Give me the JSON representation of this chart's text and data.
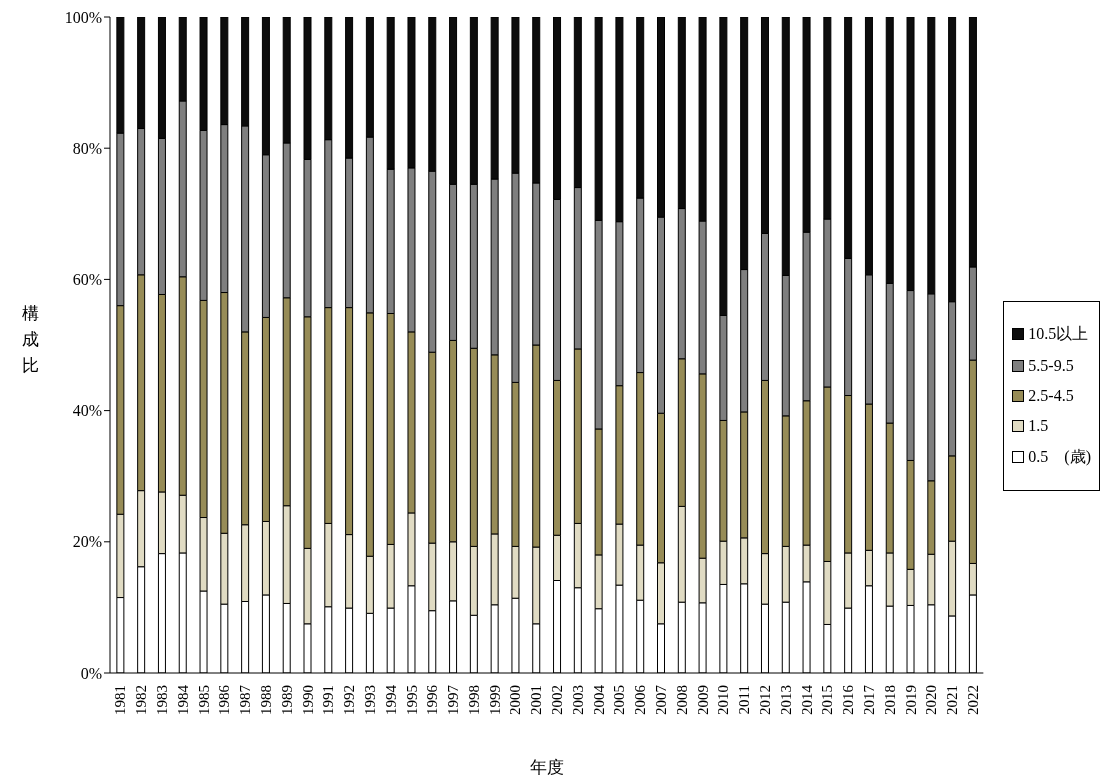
{
  "chart_data": {
    "type": "bar",
    "stacked": true,
    "xlabel": "年度",
    "ylabel": "構成比",
    "legend": "right",
    "categories": [
      "1981",
      "1982",
      "1983",
      "1984",
      "1985",
      "1986",
      "1987",
      "1988",
      "1989",
      "1990",
      "1991",
      "1992",
      "1993",
      "1994",
      "1995",
      "1996",
      "1997",
      "1998",
      "1999",
      "2000",
      "2001",
      "2002",
      "2003",
      "2004",
      "2005",
      "2006",
      "2007",
      "2008",
      "2009",
      "2010",
      "2011",
      "2012",
      "2013",
      "2014",
      "2015",
      "2016",
      "2017",
      "2018",
      "2019",
      "2020",
      "2021",
      "2022"
    ],
    "ylim": [
      0,
      100
    ],
    "yticks": [
      {
        "value": 0,
        "label": "0%"
      },
      {
        "value": 20,
        "label": "20%"
      },
      {
        "value": 40,
        "label": "40%"
      },
      {
        "value": 60,
        "label": "60%"
      },
      {
        "value": 80,
        "label": "80%"
      },
      {
        "value": 100,
        "label": "100%"
      }
    ],
    "series": [
      {
        "name": "0.5　(歳)",
        "color": "#ffffff",
        "values": [
          11.5,
          16.2,
          18.2,
          18.3,
          12.5,
          10.5,
          10.9,
          11.9,
          10.6,
          7.5,
          10.1,
          9.9,
          9.1,
          9.9,
          13.3,
          9.5,
          11.0,
          8.8,
          10.4,
          11.4,
          7.5,
          14.1,
          13.0,
          9.8,
          13.4,
          11.1,
          7.5,
          10.8,
          10.7,
          13.5,
          13.6,
          10.5,
          10.8,
          13.9,
          7.4,
          9.9,
          13.3,
          10.2,
          10.3,
          10.4,
          8.7,
          11.9
        ]
      },
      {
        "name": "1.5",
        "color": "#e0dbc3",
        "values": [
          12.7,
          11.6,
          9.4,
          8.8,
          11.2,
          10.8,
          11.7,
          11.2,
          14.9,
          11.5,
          12.7,
          11.2,
          8.7,
          9.7,
          11.1,
          10.3,
          9.0,
          10.5,
          10.8,
          7.9,
          11.7,
          6.9,
          9.8,
          8.2,
          9.3,
          8.4,
          9.3,
          14.6,
          6.8,
          6.6,
          7.0,
          7.7,
          8.5,
          5.6,
          9.6,
          8.4,
          5.4,
          8.1,
          5.5,
          7.7,
          11.4,
          4.8
        ]
      },
      {
        "name": "2.5-4.5",
        "color": "#978c57",
        "values": [
          31.8,
          32.9,
          30.1,
          33.3,
          33.1,
          36.7,
          29.4,
          31.1,
          31.7,
          35.3,
          32.9,
          34.6,
          37.1,
          35.2,
          27.6,
          29.1,
          30.7,
          30.2,
          27.3,
          25.0,
          30.8,
          23.6,
          26.6,
          19.2,
          21.1,
          26.3,
          22.8,
          22.5,
          28.1,
          18.4,
          19.2,
          26.4,
          19.9,
          22.0,
          26.6,
          24.0,
          22.3,
          19.8,
          16.6,
          11.2,
          13.0,
          31.0
        ]
      },
      {
        "name": "5.5-9.5",
        "color": "#7f7f7f",
        "values": [
          26.3,
          22.3,
          23.8,
          26.8,
          25.9,
          25.6,
          31.4,
          24.8,
          23.6,
          24.0,
          25.6,
          22.8,
          26.8,
          22.0,
          25.0,
          27.6,
          23.8,
          25.0,
          26.8,
          31.9,
          24.7,
          27.6,
          24.6,
          31.8,
          25.0,
          26.6,
          29.9,
          22.9,
          23.3,
          16.0,
          21.7,
          22.4,
          21.4,
          25.7,
          25.6,
          20.9,
          19.7,
          21.3,
          25.9,
          28.5,
          23.5,
          14.2
        ]
      },
      {
        "name": "10.5以上",
        "color": "#0d0d0d",
        "values": [
          17.7,
          17.0,
          18.5,
          12.8,
          17.3,
          16.4,
          16.6,
          21.0,
          19.2,
          21.7,
          18.7,
          21.5,
          18.3,
          23.2,
          23.0,
          23.5,
          25.5,
          25.5,
          24.7,
          23.8,
          25.3,
          27.8,
          26.0,
          31.0,
          31.2,
          27.6,
          30.5,
          29.2,
          31.1,
          45.5,
          38.5,
          33.0,
          39.4,
          32.8,
          30.8,
          36.8,
          39.3,
          40.6,
          41.7,
          42.2,
          43.4,
          38.1
        ]
      }
    ]
  }
}
